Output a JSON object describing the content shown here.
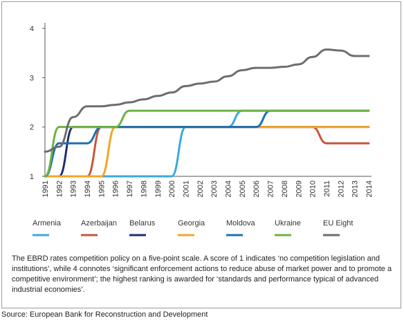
{
  "chart_data": {
    "type": "line",
    "title": "",
    "xlabel": "",
    "ylabel": "",
    "x": [
      1991,
      1992,
      1993,
      1994,
      1995,
      1996,
      1997,
      1998,
      1999,
      2000,
      2001,
      2002,
      2003,
      2004,
      2005,
      2006,
      2007,
      2008,
      2009,
      2010,
      2011,
      2012,
      2013,
      2014
    ],
    "xlim": [
      1991,
      2014
    ],
    "ylim": [
      1,
      4
    ],
    "yticks": [
      1,
      2,
      3,
      4
    ],
    "grid": false,
    "legend_position": "bottom",
    "series": [
      {
        "name": "Armenia",
        "color": "#3aa9dc",
        "values": [
          1,
          1,
          1,
          1,
          1,
          1,
          1,
          1,
          1,
          1,
          2,
          2,
          2,
          2,
          2.33,
          2.33,
          2.33,
          2.33,
          2.33,
          2.33,
          2.33,
          2.33,
          2.33,
          2.33
        ]
      },
      {
        "name": "Azerbaijan",
        "color": "#c9553c",
        "values": [
          1,
          1,
          1,
          1,
          2,
          2,
          2,
          2,
          2,
          2,
          2,
          2,
          2,
          2,
          2,
          2,
          2,
          2,
          2,
          2,
          1.67,
          1.67,
          1.67,
          1.67
        ]
      },
      {
        "name": "Belarus",
        "color": "#1f2e6e",
        "values": [
          1,
          1,
          2,
          2,
          2,
          2,
          2,
          2,
          2,
          2,
          2,
          2,
          2,
          2,
          2,
          2,
          2,
          2,
          2,
          2,
          2,
          2,
          2,
          2
        ]
      },
      {
        "name": "Georgia",
        "color": "#f3a623",
        "values": [
          1,
          1,
          1,
          1,
          1,
          2,
          2,
          2,
          2,
          2,
          2,
          2,
          2,
          2,
          2,
          2,
          2,
          2,
          2,
          2,
          2,
          2,
          2,
          2
        ]
      },
      {
        "name": "Moldova",
        "color": "#1d6fb0",
        "values": [
          1,
          1.67,
          1.67,
          1.67,
          2,
          2,
          2,
          2,
          2,
          2,
          2,
          2,
          2,
          2,
          2,
          2,
          2.33,
          2.33,
          2.33,
          2.33,
          2.33,
          2.33,
          2.33,
          2.33
        ]
      },
      {
        "name": "Ukraine",
        "color": "#6db33f",
        "values": [
          1,
          2,
          2,
          2,
          2,
          2,
          2.33,
          2.33,
          2.33,
          2.33,
          2.33,
          2.33,
          2.33,
          2.33,
          2.33,
          2.33,
          2.33,
          2.33,
          2.33,
          2.33,
          2.33,
          2.33,
          2.33,
          2.33
        ]
      },
      {
        "name": "EU Eight",
        "color": "#6d6d6d",
        "values": [
          1.5,
          1.6,
          2.2,
          2.42,
          2.42,
          2.45,
          2.5,
          2.56,
          2.63,
          2.7,
          2.83,
          2.88,
          2.92,
          3.03,
          3.15,
          3.2,
          3.2,
          3.22,
          3.27,
          3.42,
          3.57,
          3.55,
          3.44,
          3.44
        ]
      }
    ]
  },
  "note": "The EBRD rates competition policy on a five-point scale. A score of 1 indicates ‘no competition legislation and institutions’, while 4 connotes ‘significant enforcement actions to reduce abuse of market power and to promote a competitive environment’; the highest ranking is awarded for ‘standards and performance typical of advanced industrial economies’.",
  "source": "Source: European Bank for Reconstruction and Development"
}
